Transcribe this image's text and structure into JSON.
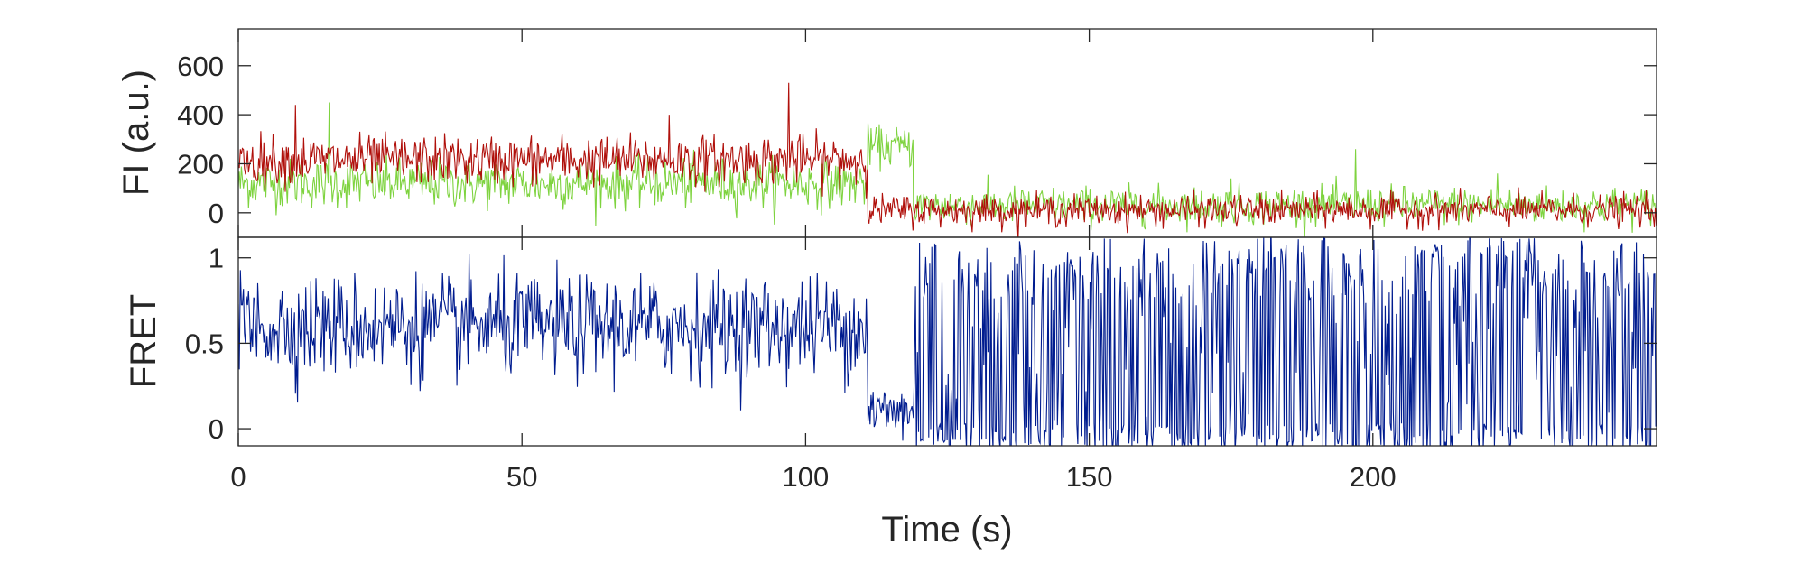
{
  "chart_data": [
    {
      "type": "line",
      "panel": "top",
      "ylabel": "FI (a.u.)",
      "xlabel": "",
      "xlim": [
        0,
        250
      ],
      "ylim": [
        -100,
        750
      ],
      "yticks": [
        0,
        200,
        400,
        600
      ],
      "ytick_labels": [
        "0",
        "200",
        "400",
        "600"
      ],
      "grid": false,
      "series": [
        {
          "color": "#7ed33f",
          "description_points": [
            [
              0,
              150
            ],
            [
              20,
              150
            ],
            [
              60,
              120
            ],
            [
              100,
              80
            ],
            [
              110,
              60
            ],
            [
              111,
              280
            ],
            [
              119,
              280
            ],
            [
              120,
              30
            ],
            [
              250,
              30
            ]
          ],
          "segments": [
            {
              "x_start": 0,
              "x_end": 111,
              "mean": 120,
              "noise": 110
            },
            {
              "x_start": 111,
              "x_end": 119,
              "mean": 270,
              "noise": 90
            },
            {
              "x_start": 119,
              "x_end": 250,
              "mean": 30,
              "noise": 85
            }
          ],
          "peaks": [
            [
              16,
              450
            ],
            [
              197,
              260
            ],
            [
              222,
              160
            ],
            [
              175,
              140
            ]
          ]
        },
        {
          "color": "#b0100b",
          "segments": [
            {
              "x_start": 0,
              "x_end": 111,
              "mean": 215,
              "noise": 110
            },
            {
              "x_start": 111,
              "x_end": 250,
              "mean": 10,
              "noise": 70
            }
          ],
          "peaks": [
            [
              10,
              440
            ],
            [
              97,
              530
            ],
            [
              76,
              400
            ]
          ]
        }
      ]
    },
    {
      "type": "line",
      "panel": "bottom",
      "ylabel": "FRET",
      "xlabel": "Time (s)",
      "xlim": [
        0,
        250
      ],
      "ylim": [
        -0.1,
        1.12
      ],
      "xticks": [
        0,
        50,
        100,
        150,
        200
      ],
      "xtick_labels": [
        "0",
        "50",
        "100",
        "150",
        "200"
      ],
      "yticks": [
        0,
        0.5,
        1
      ],
      "ytick_labels": [
        "0",
        "0.5",
        "1"
      ],
      "grid": false,
      "series": [
        {
          "color": "#001c8f",
          "segments": [
            {
              "x_start": 0,
              "x_end": 111,
              "mean": 0.6,
              "noise": 0.33,
              "kind": "noise"
            },
            {
              "x_start": 111,
              "x_end": 119,
              "mean": 0.1,
              "noise": 0.2,
              "kind": "noise"
            },
            {
              "x_start": 119,
              "x_end": 250,
              "mean": 0.5,
              "noise": 1.2,
              "kind": "saturating"
            }
          ]
        }
      ]
    }
  ]
}
